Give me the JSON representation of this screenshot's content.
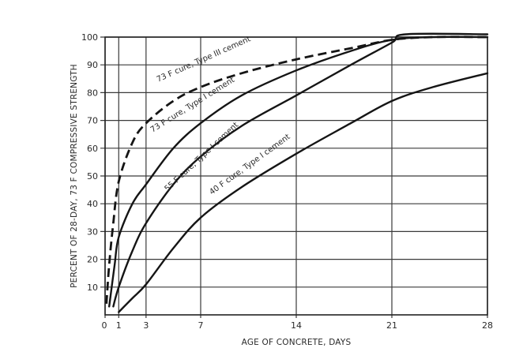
{
  "chart_data": {
    "type": "line",
    "title": "",
    "xlabel": "AGE OF CONCRETE, DAYS",
    "ylabel": "PERCENT OF 28-DAY, 73 F COMPRESSIVE STRENGTH",
    "xlim": [
      0,
      28
    ],
    "ylim": [
      0,
      100
    ],
    "x_ticks": [
      0,
      1,
      3,
      7,
      14,
      21,
      28
    ],
    "y_ticks": [
      10,
      20,
      30,
      40,
      50,
      60,
      70,
      80,
      90,
      100
    ],
    "grid": true,
    "legend": "inline curve labels",
    "series": [
      {
        "name": "73 F cure, Type III cement",
        "style": "dashed",
        "points": [
          [
            0.1,
            4
          ],
          [
            0.3,
            18
          ],
          [
            0.6,
            33
          ],
          [
            1,
            48
          ],
          [
            2,
            62
          ],
          [
            3,
            69
          ],
          [
            5,
            77
          ],
          [
            7,
            82
          ],
          [
            10,
            87
          ],
          [
            14,
            92
          ],
          [
            18,
            96
          ],
          [
            21,
            99
          ],
          [
            24,
            100
          ],
          [
            28,
            100
          ]
        ]
      },
      {
        "name": "73 F cure, Type I cement",
        "style": "solid",
        "points": [
          [
            0.3,
            3
          ],
          [
            0.7,
            18
          ],
          [
            1,
            28
          ],
          [
            2,
            40
          ],
          [
            3,
            47
          ],
          [
            5,
            60
          ],
          [
            7,
            69
          ],
          [
            10,
            79
          ],
          [
            14,
            88
          ],
          [
            18,
            95
          ],
          [
            21,
            99
          ],
          [
            24,
            100
          ],
          [
            28,
            100
          ]
        ]
      },
      {
        "name": "55 F cure, Type I cement",
        "style": "solid",
        "points": [
          [
            0.6,
            3
          ],
          [
            1,
            10
          ],
          [
            2,
            23
          ],
          [
            3,
            33
          ],
          [
            5,
            47
          ],
          [
            7,
            57
          ],
          [
            10,
            68
          ],
          [
            14,
            79
          ],
          [
            18,
            90
          ],
          [
            21,
            98
          ],
          [
            22,
            101
          ],
          [
            28,
            101
          ]
        ]
      },
      {
        "name": "40 F cure, Type I cement",
        "style": "solid",
        "points": [
          [
            1,
            1
          ],
          [
            2,
            6
          ],
          [
            3,
            11
          ],
          [
            5,
            24
          ],
          [
            7,
            35
          ],
          [
            10,
            46
          ],
          [
            14,
            58
          ],
          [
            18,
            69
          ],
          [
            21,
            77
          ],
          [
            24,
            82
          ],
          [
            28,
            87
          ]
        ]
      }
    ]
  },
  "labels": {
    "xlabel": "AGE OF CONCRETE, DAYS",
    "ylabel": "PERCENT OF 28-DAY, 73 F COMPRESSIVE STRENGTH",
    "curve_73_III": "73 F  cure,  Type III  cement",
    "curve_73_I": "73 F  cure,  Type I  cement",
    "curve_55_I": "55 F  cure,  Type I  cement",
    "curve_40_I": "40 F  cure,  Type I  cement",
    "x_tick_labels": [
      "0",
      "1",
      "3",
      "7",
      "14",
      "21",
      "28"
    ],
    "y_tick_labels": [
      "10",
      "20",
      "30",
      "40",
      "50",
      "60",
      "70",
      "80",
      "90",
      "100"
    ]
  },
  "colors": {
    "line": "#151515",
    "grid": "#3a3a3a",
    "background": "#ffffff"
  }
}
